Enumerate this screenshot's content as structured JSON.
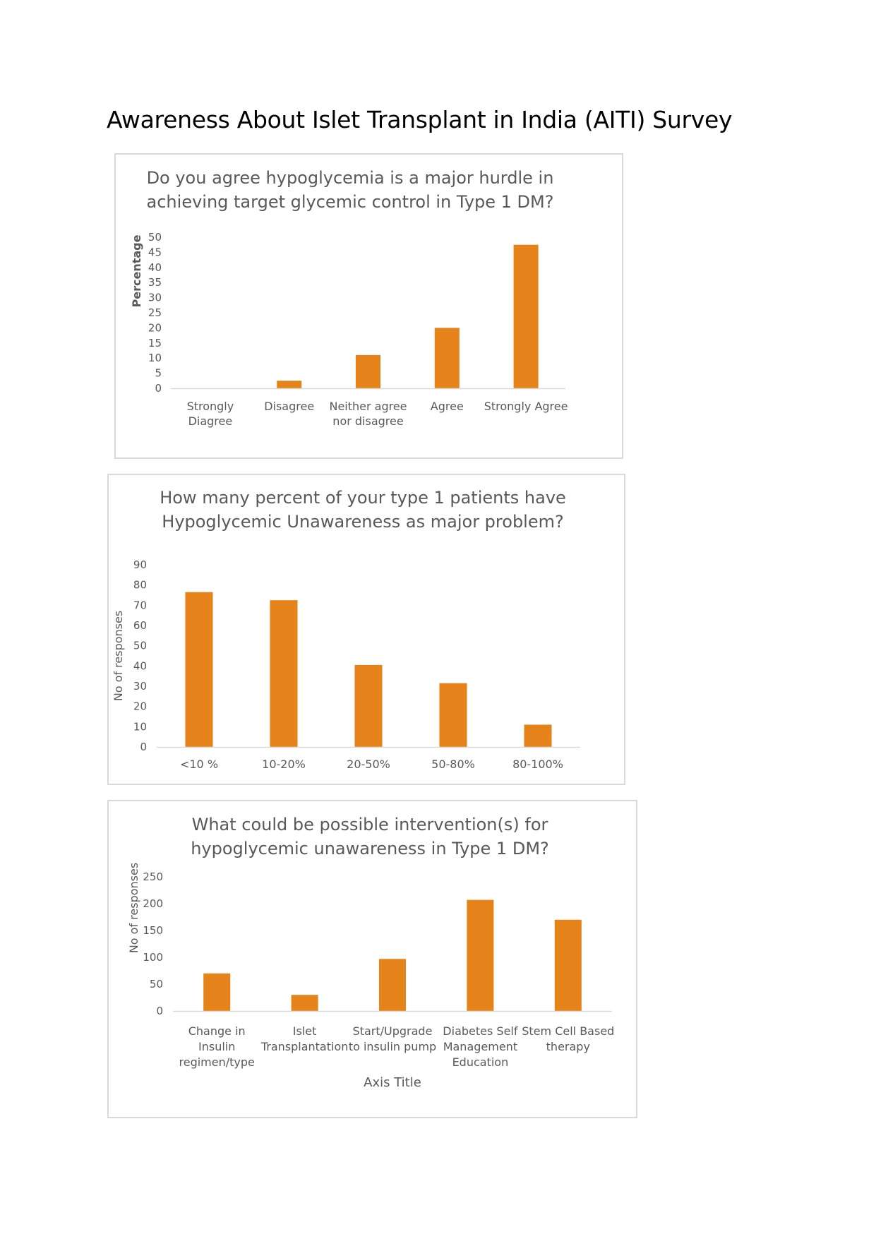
{
  "document": {
    "title": "Awareness About Islet Transplant in India (AITI) Survey"
  },
  "chart_data": [
    {
      "type": "bar",
      "title": [
        "Do  you agree hypoglycemia is a major hurdle in",
        "achieving target glycemic control in  Type 1 DM?"
      ],
      "categories": [
        [
          "Strongly",
          "Diagree"
        ],
        [
          "Disagree"
        ],
        [
          "Neither agree",
          "nor disagree"
        ],
        [
          "Agree"
        ],
        [
          "Strongly Agree"
        ]
      ],
      "values": [
        0,
        2.5,
        11,
        20,
        47.5
      ],
      "yticks": [
        0,
        5,
        10,
        15,
        20,
        25,
        30,
        35,
        40,
        45,
        50
      ],
      "ylim": [
        0,
        50
      ],
      "ylabel": "Percentage",
      "xlabel": "",
      "bar_color": "#E6821A",
      "grid": false,
      "legend": "none"
    },
    {
      "type": "bar",
      "title": [
        "How many percent of your type 1 patients have",
        "Hypoglycemic Unawareness as major problem?"
      ],
      "categories": [
        [
          "<10 %"
        ],
        [
          "10-20%"
        ],
        [
          "20-50%"
        ],
        [
          "50-80%"
        ],
        [
          "80-100%"
        ]
      ],
      "values": [
        76.5,
        72.5,
        40.5,
        31.5,
        11
      ],
      "yticks": [
        0,
        10,
        20,
        30,
        40,
        50,
        60,
        70,
        80,
        90
      ],
      "ylim": [
        0,
        90
      ],
      "ylabel": "No of responses",
      "xlabel": "",
      "bar_color": "#E6821A",
      "grid": false,
      "legend": "none"
    },
    {
      "type": "bar",
      "title": [
        "What could be possible  intervention(s)  for",
        "hypoglycemic unawareness in Type 1 DM?"
      ],
      "categories": [
        [
          "Change in",
          "Insulin",
          "regimen/type"
        ],
        [
          "Islet",
          "Transplantation"
        ],
        [
          "Start/Upgrade",
          "to insulin pump"
        ],
        [
          "Diabetes Self",
          "Management",
          "Education"
        ],
        [
          "Stem Cell Based",
          "therapy"
        ]
      ],
      "values": [
        70,
        30,
        97,
        207,
        170
      ],
      "yticks": [
        0,
        50,
        100,
        150,
        200,
        250
      ],
      "ylim": [
        0,
        250
      ],
      "ylabel": "No of responses",
      "xlabel": "Axis Title",
      "bar_color": "#E6821A",
      "grid": false,
      "legend": "none"
    }
  ]
}
